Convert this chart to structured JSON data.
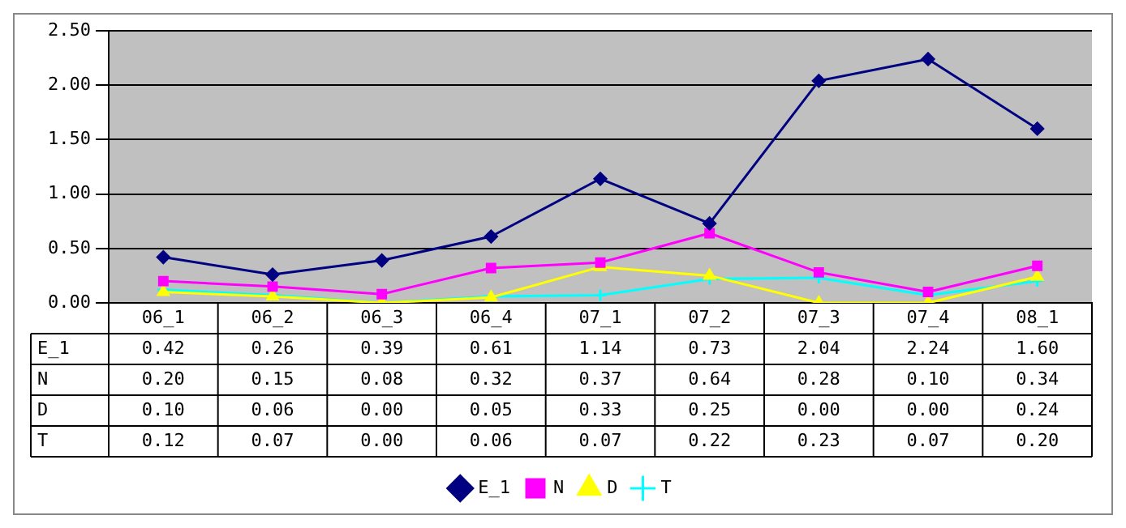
{
  "chart_data": {
    "type": "line",
    "categories": [
      "06_1",
      "06_2",
      "06_3",
      "06_4",
      "07_1",
      "07_2",
      "07_3",
      "07_4",
      "08_1"
    ],
    "series": [
      {
        "name": "E_1",
        "color": "#000080",
        "marker": "diamond",
        "values": [
          0.42,
          0.26,
          0.39,
          0.61,
          1.14,
          0.73,
          2.04,
          2.24,
          1.6
        ],
        "value_labels": [
          "0.42",
          "0.26",
          "0.39",
          "0.61",
          "1.14",
          "0.73",
          "2.04",
          "2.24",
          "1.60"
        ]
      },
      {
        "name": "N",
        "color": "#ff00ff",
        "marker": "square",
        "values": [
          0.2,
          0.15,
          0.08,
          0.32,
          0.37,
          0.64,
          0.28,
          0.1,
          0.34
        ],
        "value_labels": [
          "0.20",
          "0.15",
          "0.08",
          "0.32",
          "0.37",
          "0.64",
          "0.28",
          "0.10",
          "0.34"
        ]
      },
      {
        "name": "D",
        "color": "#ffff00",
        "marker": "triangle",
        "values": [
          0.1,
          0.06,
          0.0,
          0.05,
          0.33,
          0.25,
          0.0,
          0.0,
          0.24
        ],
        "value_labels": [
          "0.10",
          "0.06",
          "0.00",
          "0.05",
          "0.33",
          "0.25",
          "0.00",
          "0.00",
          "0.24"
        ]
      },
      {
        "name": "T",
        "color": "#00ffff",
        "marker": "cross",
        "values": [
          0.12,
          0.07,
          0.0,
          0.06,
          0.07,
          0.22,
          0.23,
          0.07,
          0.2
        ],
        "value_labels": [
          "0.12",
          "0.07",
          "0.00",
          "0.06",
          "0.07",
          "0.22",
          "0.23",
          "0.07",
          "0.20"
        ]
      }
    ],
    "ylim": [
      0,
      2.5
    ],
    "yticks": [
      {
        "value": 0,
        "label": "0.00"
      },
      {
        "value": 0.5,
        "label": "0.50"
      },
      {
        "value": 1,
        "label": "1.00"
      },
      {
        "value": 1.5,
        "label": "1.50"
      },
      {
        "value": 2,
        "label": "2.00"
      },
      {
        "value": 2.5,
        "label": "2.50"
      }
    ],
    "grid": "y",
    "legend": "bottom"
  }
}
